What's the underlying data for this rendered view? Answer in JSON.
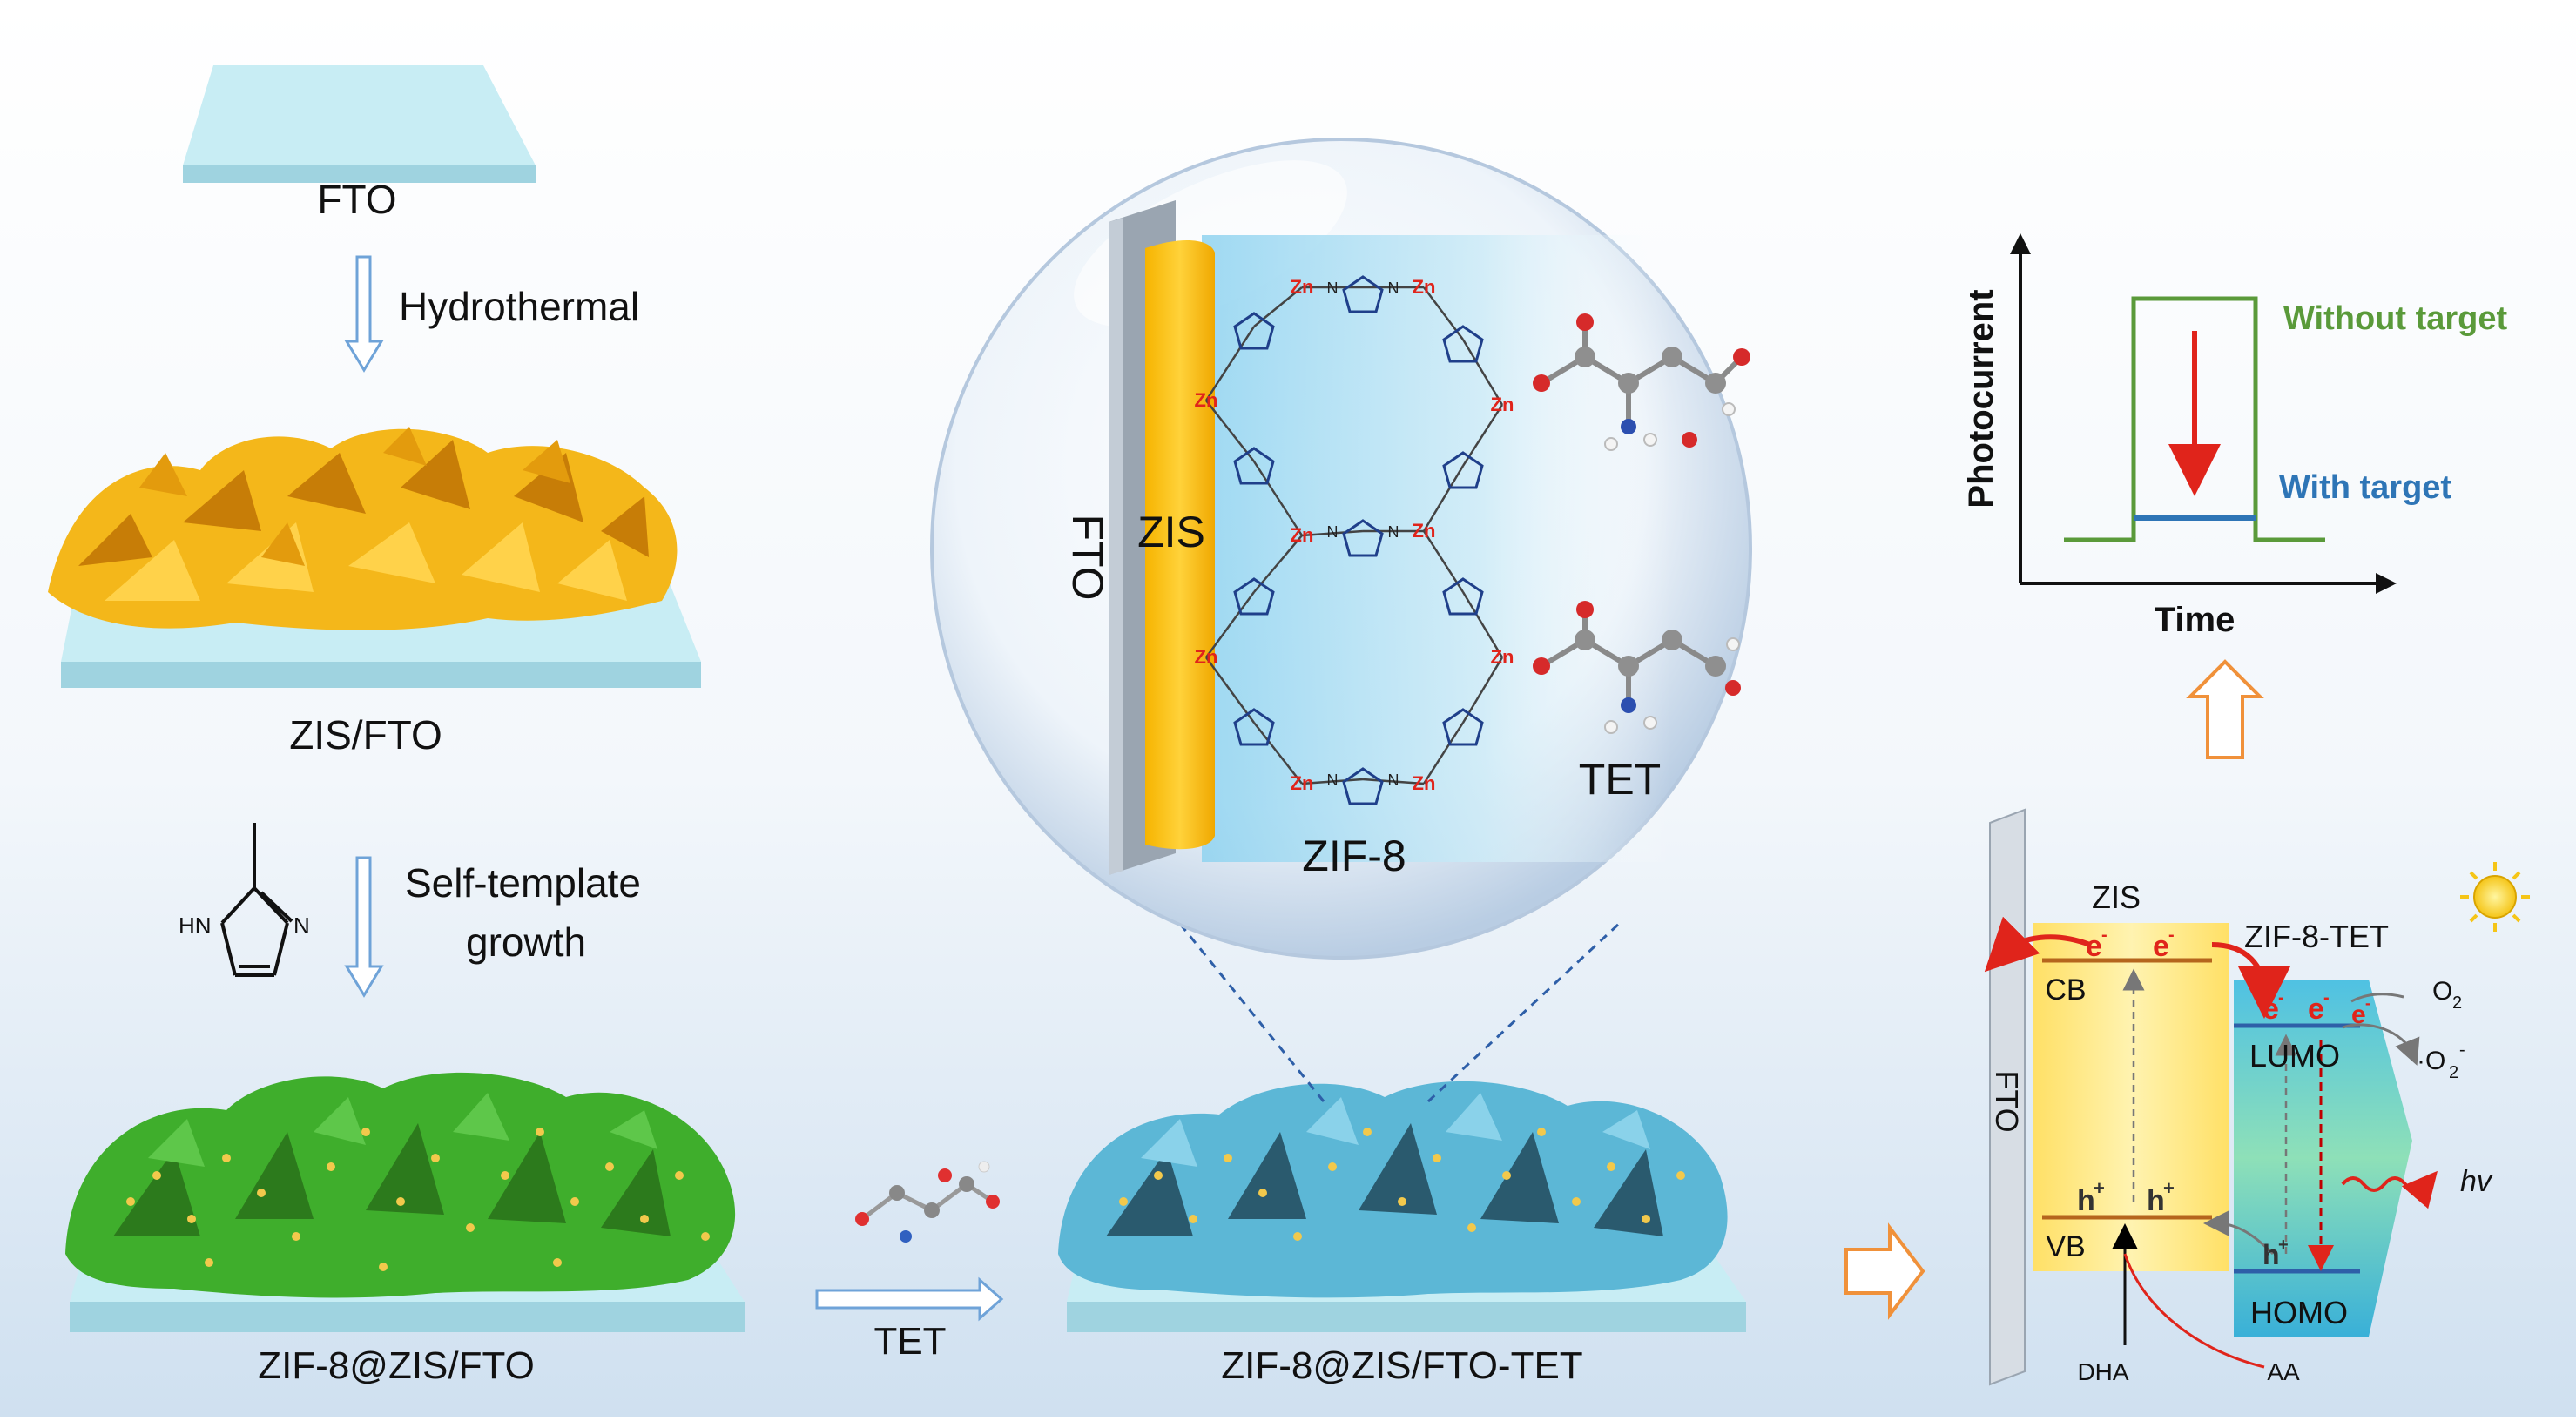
{
  "labels": {
    "fto_top": "FTO",
    "hydrothermal": "Hydrothermal",
    "zis_fto": "ZIS/FTO",
    "self_template_line1": "Self-template",
    "self_template_line2": "growth",
    "imidazole_nh": "HN",
    "imidazole_n": "N",
    "zif8_zis_fto": "ZIF-8@ZIS/FTO",
    "tet_arrow": "TET",
    "zif8_zis_fto_tet": "ZIF-8@ZIS/FTO-TET",
    "bubble_fto": "FTO",
    "bubble_zis": "ZIS",
    "bubble_zif8": "ZIF-8",
    "bubble_tet": "TET",
    "zn": "Zn",
    "n": "N"
  },
  "chart_data": {
    "type": "line",
    "xlabel": "Time",
    "ylabel": "Photocurrent",
    "series": [
      {
        "name": "Without target",
        "color": "#5a9a3a"
      },
      {
        "name": "With target",
        "color": "#2e75b6"
      }
    ]
  },
  "mechanism": {
    "fto": "FTO",
    "zis": "ZIS",
    "zif8_tet": "ZIF-8-TET",
    "cb": "CB",
    "vb": "VB",
    "lumo": "LUMO",
    "homo": "HOMO",
    "electron": "e",
    "electron_sup": "-",
    "hole": "h",
    "hole_sup": "+",
    "o2": "O",
    "o2_sub": "2",
    "o2_radical": "·O",
    "o2_radical_sub": "2",
    "o2_radical_sup": "-",
    "hv": "hv",
    "dha": "DHA",
    "aa": "AA"
  },
  "colors": {
    "fto_glass": "#bfe6ef",
    "zis_yellow": "#f7c31a",
    "zif_green": "#3daa2e",
    "zif_blue": "#5fb8d6",
    "electron_red": "#e0241b",
    "arrow_blue": "#6fa3d8",
    "arrow_orange": "#f0913a",
    "sun": "#f5c518"
  }
}
